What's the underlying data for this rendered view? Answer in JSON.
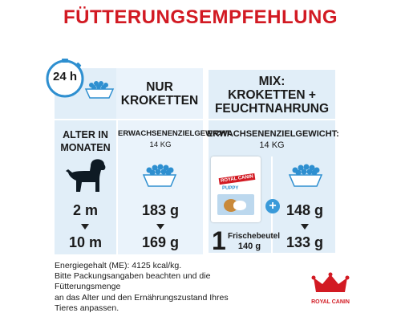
{
  "title": "FÜTTERUNGSEMPFEHLUNG",
  "clock_label": "24 h",
  "dry": {
    "header_line1": "NUR",
    "header_line2": "KROKETTEN",
    "weight_label": "ERWACHSENENZIELGEWICHT:",
    "weight_value": "14 KG"
  },
  "mix": {
    "header_line1": "MIX:",
    "header_line2": "KROKETTEN +",
    "header_line3": "FEUCHTNAHRUNG",
    "weight_label": "ERWACHSENENZIELGEWICHT:",
    "weight_value": "14 KG",
    "pouch_count": "1",
    "pouch_label": "Frischebeutel",
    "pouch_weight": "140 g",
    "pack_brand": "ROYAL CANIN",
    "pack_variant": "PUPPY"
  },
  "age": {
    "header_line1": "ALTER IN",
    "header_line2": "MONATEN"
  },
  "rows": [
    {
      "age": "2 m",
      "dry_only": "183 g",
      "mix_dry": "148 g"
    },
    {
      "age": "10 m",
      "dry_only": "169 g",
      "mix_dry": "133 g"
    }
  ],
  "footer": [
    "Energiegehalt (ME): 4125 kcal/kg.",
    "Bitte Packungsangaben beachten und die",
    "Fütterungsmenge",
    "an das Alter und den Ernährungszustand Ihres",
    "Tieres anpassen."
  ],
  "brand_name": "ROYAL CANIN",
  "colors": {
    "title_red": "#d21a23",
    "panel_blue": "#e1eef8",
    "clock_blue": "#2e8fd0",
    "plus_blue": "#3a9ad9"
  }
}
